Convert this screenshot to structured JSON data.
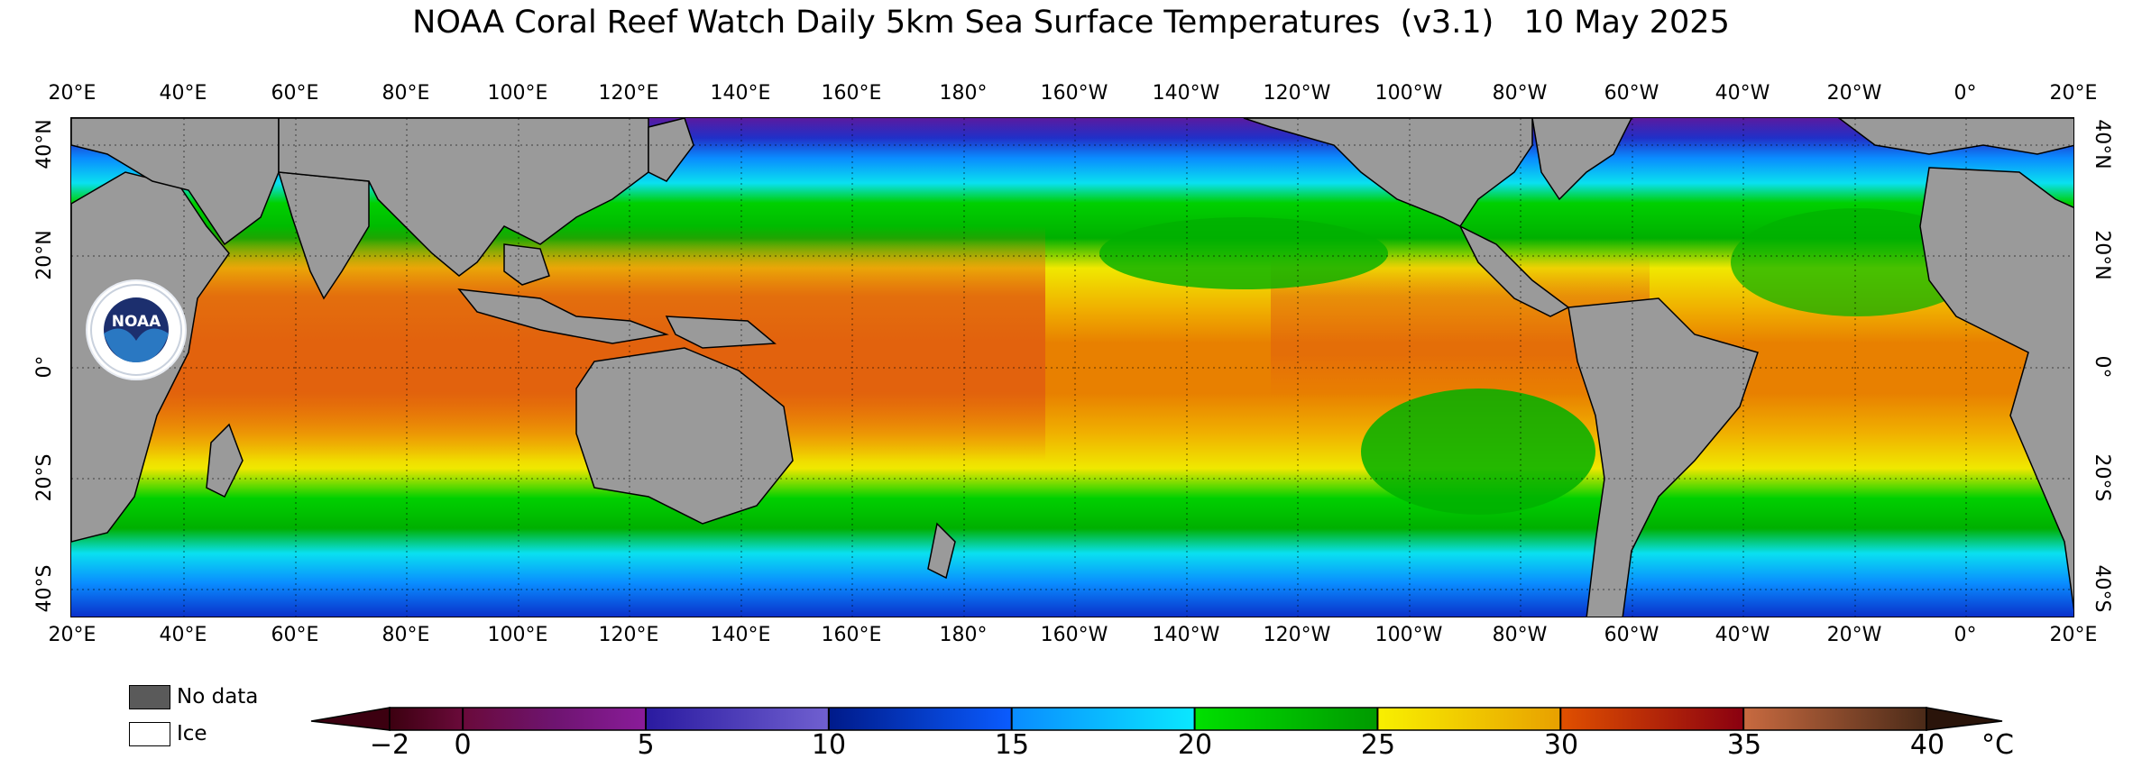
{
  "header": {
    "title": "NOAA Coral Reef Watch Daily 5km Sea Surface Temperatures  (v3.1)   10 May 2025"
  },
  "map": {
    "longitude_labels": [
      "20°E",
      "40°E",
      "60°E",
      "80°E",
      "100°E",
      "120°E",
      "140°E",
      "160°E",
      "180°",
      "160°W",
      "140°W",
      "120°W",
      "100°W",
      "80°W",
      "60°W",
      "40°W",
      "20°W",
      "0°",
      "20°E"
    ],
    "latitude_labels": [
      "40°N",
      "20°N",
      "0°",
      "20°S",
      "40°S"
    ],
    "land_color": "#9a9a9a",
    "gridline_style": "dotted",
    "logo_text": "NOAA"
  },
  "legend": {
    "no_data_label": "No data",
    "no_data_color": "#5a5a5a",
    "ice_label": "Ice",
    "ice_color": "#ffffff"
  },
  "colorbar": {
    "tick_labels": [
      "−2",
      "0",
      "5",
      "10",
      "15",
      "20",
      "25",
      "30",
      "35",
      "40"
    ],
    "unit": "°C",
    "min": -2,
    "max": 40,
    "stops": [
      {
        "value": -2,
        "color": "#3c0010"
      },
      {
        "value": 0,
        "color": "#6a0a3a"
      },
      {
        "value": 2.5,
        "color": "#6e1470"
      },
      {
        "value": 5,
        "color": "#8a1c9a"
      },
      {
        "value": 5.01,
        "color": "#2a1aa0"
      },
      {
        "value": 10,
        "color": "#7060d0"
      },
      {
        "value": 10.01,
        "color": "#001a8a"
      },
      {
        "value": 15,
        "color": "#0a5cff"
      },
      {
        "value": 15.01,
        "color": "#0a8cff"
      },
      {
        "value": 20,
        "color": "#0ae8ff"
      },
      {
        "value": 20.01,
        "color": "#00e000"
      },
      {
        "value": 25,
        "color": "#009a00"
      },
      {
        "value": 25.01,
        "color": "#f8f000"
      },
      {
        "value": 30,
        "color": "#e8a000"
      },
      {
        "value": 30.01,
        "color": "#e05000"
      },
      {
        "value": 35,
        "color": "#8a0010"
      },
      {
        "value": 35.01,
        "color": "#c86a40"
      },
      {
        "value": 40,
        "color": "#4a2a18"
      }
    ]
  }
}
